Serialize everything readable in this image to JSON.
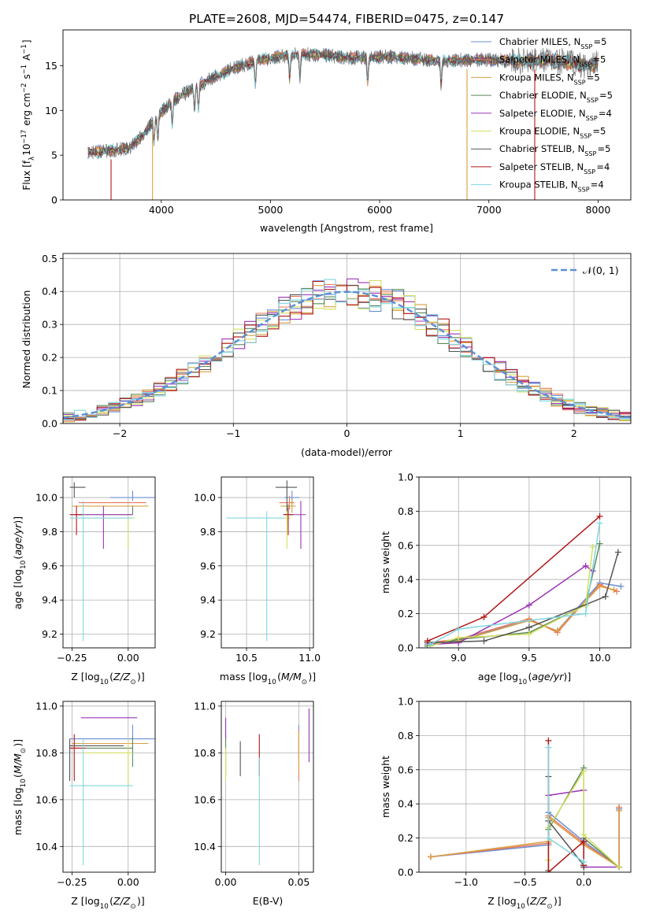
{
  "title": "PLATE=2608, MJD=54474, FIBERID=0475, z=0.147",
  "colors": {
    "Chabrier MILES": "#6b8fd6",
    "Salpeter MILES": "#e8795a",
    "Kroupa MILES": "#d99f45",
    "Chabrier ELODIE": "#5c8a5c",
    "Salpeter ELODIE": "#9b35b5",
    "Kroupa ELODIE": "#d4e060",
    "Chabrier STELIB": "#555555",
    "Salpeter STELIB": "#b01818",
    "Kroupa STELIB": "#7fd6e0"
  },
  "chart_data": [
    {
      "id": "spectrum",
      "type": "line",
      "xlabel": "wavelength [Angstrom, rest frame]",
      "ylabel": "Flux [f_λ10^-17 erg cm^-2 s^-1 A^-1]",
      "xlim": [
        3100,
        8300
      ],
      "ylim": [
        0,
        19
      ],
      "xticks": [
        4000,
        5000,
        6000,
        7000,
        8000
      ],
      "yticks": [
        0,
        5,
        10,
        15
      ],
      "grid": false,
      "legend_position": "right",
      "legend": [
        {
          "label": "Chabrier MILES, N",
          "sub": "SSP",
          "suffix": "=5",
          "series": "Chabrier MILES"
        },
        {
          "label": "Salpeter MILES, N",
          "sub": "SSP",
          "suffix": "=5",
          "series": "Salpeter MILES"
        },
        {
          "label": "Kroupa MILES, N",
          "sub": "SSP",
          "suffix": "=5",
          "series": "Kroupa MILES"
        },
        {
          "label": "Chabrier ELODIE, N",
          "sub": "SSP",
          "suffix": "=5",
          "series": "Chabrier ELODIE"
        },
        {
          "label": "Salpeter ELODIE, N",
          "sub": "SSP",
          "suffix": "=4",
          "series": "Salpeter ELODIE"
        },
        {
          "label": "Kroupa ELODIE, N",
          "sub": "SSP",
          "suffix": "=5",
          "series": "Kroupa ELODIE"
        },
        {
          "label": "Chabrier STELIB, N",
          "sub": "SSP",
          "suffix": "=5",
          "series": "Chabrier STELIB"
        },
        {
          "label": "Salpeter STELIB, N",
          "sub": "SSP",
          "suffix": "=4",
          "series": "Salpeter STELIB"
        },
        {
          "label": "Kroupa STELIB, N",
          "sub": "SSP",
          "suffix": "=4",
          "series": "Kroupa STELIB"
        }
      ],
      "continuum": {
        "x": [
          3330,
          3500,
          3700,
          3850,
          3950,
          4100,
          4300,
          4500,
          4700,
          4900,
          5100,
          5300,
          5500,
          5700,
          5900,
          6100,
          6300,
          6500,
          6700,
          6900,
          7100,
          7300,
          7500,
          7700,
          7900,
          8000
        ],
        "y": [
          5.3,
          5.5,
          5.7,
          7.5,
          9.2,
          11.0,
          12.6,
          13.8,
          14.9,
          15.6,
          16.1,
          16.3,
          16.2,
          15.9,
          15.9,
          16.0,
          15.8,
          15.6,
          15.6,
          15.7,
          15.6,
          15.5,
          15.6,
          15.4,
          15.0,
          15.2
        ]
      },
      "absorption_lines": [
        3934,
        3969,
        4101,
        4304,
        4340,
        4861,
        5175,
        5270,
        5890,
        6563
      ],
      "model_edges": [
        {
          "series": "Salpeter STELIB",
          "x": [
            3540,
            7420
          ]
        },
        {
          "series": "Kroupa MILES",
          "x": [
            3920,
            6800
          ]
        }
      ]
    },
    {
      "id": "residuals",
      "type": "line",
      "xlabel": "(data-model)/error",
      "ylabel": "Normed distribution",
      "xlim": [
        -2.5,
        2.5
      ],
      "ylim": [
        0,
        0.515
      ],
      "xticks": [
        -2,
        -1,
        0,
        1,
        2
      ],
      "yticks": [
        0.0,
        0.1,
        0.2,
        0.3,
        0.4,
        0.5
      ],
      "grid": true,
      "legend": "𝒩(0, 1)",
      "legend_position": "top-right",
      "bin_width": 0.1
    },
    {
      "id": "age-vs-z",
      "type": "scatter",
      "xlabel": "Z [log10(Z/Z⊙)]",
      "ylabel": "age [log10(age/yr)]",
      "xlim": [
        -0.29,
        0.12
      ],
      "ylim": [
        9.12,
        10.12
      ],
      "xticks": [
        -0.25,
        0.0
      ],
      "yticks": [
        9.2,
        9.4,
        9.6,
        9.8,
        10.0
      ],
      "grid": true,
      "points": [
        {
          "series": "Chabrier MILES",
          "x": 0.02,
          "y": 10.0,
          "xerr": [
            0.1,
            0.14
          ],
          "yerr": [
            0.02,
            0.04
          ]
        },
        {
          "series": "Salpeter MILES",
          "x": -0.1,
          "y": 9.97,
          "xerr": [
            0.12,
            0.18
          ],
          "yerr": [
            0.0,
            0.0
          ]
        },
        {
          "series": "Kroupa MILES",
          "x": -0.05,
          "y": 9.95,
          "xerr": [
            0.2,
            0.14
          ],
          "yerr": [
            0.0,
            0.0
          ]
        },
        {
          "series": "Chabrier ELODIE",
          "x": 0.02,
          "y": 9.9,
          "xerr": [
            0.26,
            0.0
          ],
          "yerr": [
            0.0,
            0.05
          ]
        },
        {
          "series": "Salpeter ELODIE",
          "x": -0.11,
          "y": 9.9,
          "xerr": [
            0.15,
            0.13
          ],
          "yerr": [
            0.2,
            0.05
          ]
        },
        {
          "series": "Kroupa ELODIE",
          "x": 0.0,
          "y": 9.88,
          "xerr": [
            0.2,
            0.03
          ],
          "yerr": [
            0.18,
            0.0
          ]
        },
        {
          "series": "Chabrier STELIB",
          "x": -0.24,
          "y": 10.06,
          "xerr": [
            0.02,
            0.05
          ],
          "yerr": [
            0.06,
            0.03
          ]
        },
        {
          "series": "Salpeter STELIB",
          "x": -0.23,
          "y": 9.9,
          "xerr": [
            0.03,
            0.03
          ],
          "yerr": [
            0.12,
            0.05
          ]
        },
        {
          "series": "Kroupa STELIB",
          "x": -0.2,
          "y": 9.88,
          "xerr": [
            0.06,
            0.22
          ],
          "yerr": [
            0.72,
            0.1
          ]
        }
      ]
    },
    {
      "id": "age-vs-mass",
      "type": "scatter",
      "xlabel": "mass [log10(M/M⊙)]",
      "ylim": [
        9.12,
        10.12
      ],
      "xlim": [
        10.3,
        11.03
      ],
      "xticks": [
        10.5,
        11.0
      ],
      "yticks": [
        9.2,
        9.4,
        9.6,
        9.8,
        10.0
      ],
      "grid": true,
      "points": [
        {
          "series": "Chabrier MILES",
          "x": 10.86,
          "y": 10.0,
          "xerr": [
            0.06,
            0.06
          ],
          "yerr": [
            0.04,
            0.04
          ]
        },
        {
          "series": "Salpeter MILES",
          "x": 10.84,
          "y": 9.97,
          "xerr": [
            0.08,
            0.04
          ],
          "yerr": [
            0.04,
            0.04
          ]
        },
        {
          "series": "Kroupa MILES",
          "x": 10.86,
          "y": 9.95,
          "xerr": [
            0.09,
            0.03
          ],
          "yerr": [
            0.04,
            0.04
          ]
        },
        {
          "series": "Chabrier ELODIE",
          "x": 10.83,
          "y": 9.9,
          "xerr": [
            0.03,
            0.03
          ],
          "yerr": [
            0.06,
            0.06
          ]
        },
        {
          "series": "Salpeter ELODIE",
          "x": 10.93,
          "y": 9.9,
          "xerr": [
            0.07,
            0.04
          ],
          "yerr": [
            0.2,
            0.08
          ]
        },
        {
          "series": "Kroupa ELODIE",
          "x": 10.82,
          "y": 9.88,
          "xerr": [
            0.03,
            0.03
          ],
          "yerr": [
            0.18,
            0.06
          ]
        },
        {
          "series": "Chabrier STELIB",
          "x": 10.82,
          "y": 10.06,
          "xerr": [
            0.09,
            0.08
          ],
          "yerr": [
            0.14,
            0.04
          ]
        },
        {
          "series": "Salpeter STELIB",
          "x": 10.83,
          "y": 9.9,
          "xerr": [
            0.04,
            0.04
          ],
          "yerr": [
            0.12,
            0.04
          ]
        },
        {
          "series": "Kroupa STELIB",
          "x": 10.66,
          "y": 9.88,
          "xerr": [
            0.32,
            0.14
          ],
          "yerr": [
            0.72,
            0.04
          ]
        }
      ]
    },
    {
      "id": "weight-vs-age",
      "type": "line",
      "xlabel": "age [log10(age/yr)]",
      "ylabel": "mass weight",
      "xlim": [
        8.72,
        10.22
      ],
      "ylim": [
        0,
        1.0
      ],
      "xticks": [
        9.0,
        9.5,
        10.0
      ],
      "yticks": [
        0.0,
        0.2,
        0.4,
        0.6,
        0.8,
        1.0
      ],
      "grid": true,
      "series": [
        {
          "name": "Chabrier MILES",
          "x": [
            8.78,
            9.0,
            9.5,
            9.7,
            10.0,
            10.15
          ],
          "y": [
            0.02,
            0.05,
            0.16,
            0.1,
            0.38,
            0.36
          ]
        },
        {
          "name": "Salpeter MILES",
          "x": [
            8.78,
            9.0,
            9.5,
            9.7,
            10.0,
            10.12
          ],
          "y": [
            0.03,
            0.05,
            0.17,
            0.09,
            0.37,
            0.33
          ]
        },
        {
          "name": "Kroupa MILES",
          "x": [
            8.8,
            9.0,
            9.5,
            9.7,
            10.0,
            10.1
          ],
          "y": [
            0.02,
            0.04,
            0.16,
            0.1,
            0.36,
            0.34
          ]
        },
        {
          "name": "Chabrier ELODIE",
          "x": [
            8.78,
            9.0,
            9.5,
            9.9,
            10.0
          ],
          "y": [
            0.01,
            0.05,
            0.09,
            0.25,
            0.61
          ]
        },
        {
          "name": "Salpeter ELODIE",
          "x": [
            8.8,
            9.0,
            9.5,
            9.9,
            9.95
          ],
          "y": [
            0.02,
            0.03,
            0.25,
            0.48,
            0.45
          ]
        },
        {
          "name": "Kroupa ELODIE",
          "x": [
            8.8,
            9.0,
            9.5,
            9.9,
            9.95
          ],
          "y": [
            0.01,
            0.06,
            0.08,
            0.25,
            0.59
          ]
        },
        {
          "name": "Chabrier STELIB",
          "x": [
            8.78,
            9.18,
            9.5,
            10.04,
            10.13
          ],
          "y": [
            0.03,
            0.04,
            0.12,
            0.3,
            0.56
          ]
        },
        {
          "name": "Salpeter STELIB",
          "x": [
            8.78,
            9.18,
            10.0
          ],
          "y": [
            0.04,
            0.18,
            0.77
          ]
        },
        {
          "name": "Kroupa STELIB",
          "x": [
            8.8,
            9.0,
            9.9,
            10.0
          ],
          "y": [
            0.02,
            0.11,
            0.2,
            0.73
          ]
        }
      ]
    },
    {
      "id": "mass-vs-z",
      "type": "scatter",
      "xlabel": "Z [log10(Z/Z⊙)]",
      "ylabel": "mass [log10(M/M⊙)]",
      "xlim": [
        -0.29,
        0.12
      ],
      "ylim": [
        10.29,
        11.02
      ],
      "xticks": [
        -0.25,
        0.0
      ],
      "yticks": [
        10.4,
        10.6,
        10.8,
        11.0
      ],
      "grid": true,
      "points": [
        {
          "series": "Chabrier MILES",
          "x": 0.02,
          "y": 10.86,
          "xerr": [
            0.28,
            0.1
          ],
          "yerr": [
            0.06,
            0.06
          ]
        },
        {
          "series": "Salpeter MILES",
          "x": -0.1,
          "y": 10.84,
          "xerr": [
            0.14,
            0.19
          ],
          "yerr": [
            0.0,
            0.0
          ]
        },
        {
          "series": "Kroupa MILES",
          "x": -0.05,
          "y": 10.84,
          "xerr": [
            0.2,
            0.14
          ],
          "yerr": [
            0.0,
            0.0
          ]
        },
        {
          "series": "Chabrier ELODIE",
          "x": 0.02,
          "y": 10.82,
          "xerr": [
            0.28,
            0.0
          ],
          "yerr": [
            0.08,
            0.05
          ]
        },
        {
          "series": "Salpeter ELODIE",
          "x": -0.08,
          "y": 10.95,
          "xerr": [
            0.13,
            0.12
          ],
          "yerr": [
            0.0,
            0.0
          ]
        },
        {
          "series": "Kroupa ELODIE",
          "x": 0.0,
          "y": 10.8,
          "xerr": [
            0.2,
            0.02
          ],
          "yerr": [
            0.14,
            0.06
          ]
        },
        {
          "series": "Chabrier STELIB",
          "x": -0.26,
          "y": 10.83,
          "xerr": [
            0.0,
            0.24
          ],
          "yerr": [
            0.15,
            0.03
          ]
        },
        {
          "series": "Salpeter STELIB",
          "x": -0.24,
          "y": 10.82,
          "xerr": [
            0.02,
            0.05
          ],
          "yerr": [
            0.14,
            0.06
          ]
        },
        {
          "series": "Kroupa STELIB",
          "x": -0.2,
          "y": 10.66,
          "xerr": [
            0.06,
            0.22
          ],
          "yerr": [
            0.34,
            0.2
          ]
        }
      ]
    },
    {
      "id": "mass-vs-ebv",
      "type": "scatter",
      "xlabel": "E(B-V)",
      "xlim": [
        -0.003,
        0.06
      ],
      "ylim": [
        10.29,
        11.02
      ],
      "xticks": [
        0.0,
        0.05
      ],
      "yticks": [
        10.4,
        10.6,
        10.8,
        11.0
      ],
      "grid": true,
      "points": [
        {
          "series": "Chabrier MILES",
          "x": 0.05,
          "y": 10.86,
          "yerr": [
            0.08,
            0.06
          ]
        },
        {
          "series": "Salpeter MILES",
          "x": 0.05,
          "y": 10.84,
          "yerr": [
            0.16,
            0.06
          ]
        },
        {
          "series": "Kroupa MILES",
          "x": 0.05,
          "y": 10.84,
          "yerr": [
            0.12,
            0.05
          ]
        },
        {
          "series": "Chabrier ELODIE",
          "x": 0.0,
          "y": 10.82,
          "yerr": [
            0.12,
            0.06
          ]
        },
        {
          "series": "Salpeter ELODIE",
          "x": 0.0,
          "y": 10.9,
          "yerr": [
            0.04,
            0.05
          ]
        },
        {
          "series": "Kroupa ELODIE",
          "x": 0.0,
          "y": 10.78,
          "yerr": [
            0.1,
            0.04
          ]
        },
        {
          "series": "Chabrier STELIB",
          "x": 0.01,
          "y": 10.8,
          "yerr": [
            0.1,
            0.05
          ]
        },
        {
          "series": "Salpeter STELIB",
          "x": 0.023,
          "y": 10.82,
          "yerr": [
            0.12,
            0.06
          ]
        },
        {
          "series": "Kroupa STELIB",
          "x": 0.023,
          "y": 10.66,
          "yerr": [
            0.34,
            0.12
          ]
        },
        {
          "series": "Salpeter ELODIE",
          "x": 0.057,
          "y": 10.9,
          "yerr": [
            0.14,
            0.09
          ]
        }
      ]
    },
    {
      "id": "weight-vs-z",
      "type": "line",
      "xlabel": "Z [log10(Z/Z⊙)]",
      "ylabel": "mass weight",
      "xlim": [
        -1.4,
        0.4
      ],
      "ylim": [
        0,
        1.0
      ],
      "xticks": [
        -1.0,
        -0.5,
        0.0
      ],
      "yticks": [
        0.0,
        0.2,
        0.4,
        0.6,
        0.8,
        1.0
      ],
      "grid": true,
      "series": [
        {
          "name": "Chabrier MILES",
          "x": [
            -1.3,
            -0.3,
            -0.3,
            0.0,
            0.3,
            0.3
          ],
          "y": [
            0.09,
            0.16,
            0.35,
            0.18,
            0.03,
            0.37
          ]
        },
        {
          "name": "Salpeter MILES",
          "x": [
            -1.3,
            -0.3,
            -0.3,
            0.0,
            0.3,
            0.3
          ],
          "y": [
            0.09,
            0.17,
            0.33,
            0.17,
            0.03,
            0.38
          ]
        },
        {
          "name": "Kroupa MILES",
          "x": [
            -1.3,
            -0.3,
            -0.3,
            0.0,
            0.3,
            0.3
          ],
          "y": [
            0.09,
            0.18,
            0.32,
            0.16,
            0.03,
            0.36
          ]
        },
        {
          "name": "Chabrier ELODIE",
          "x": [
            -0.3,
            -0.3,
            0.0,
            0.0,
            0.3
          ],
          "y": [
            0.01,
            0.25,
            0.61,
            0.2,
            0.03
          ]
        },
        {
          "name": "Salpeter ELODIE",
          "x": [
            -0.3,
            0.0,
            0.0,
            0.3
          ],
          "y": [
            0.45,
            0.48,
            0.03,
            0.03
          ]
        },
        {
          "name": "Kroupa ELODIE",
          "x": [
            -0.3,
            -0.3,
            0.0,
            0.0,
            0.3
          ],
          "y": [
            0.07,
            0.26,
            0.59,
            0.22,
            0.03
          ]
        },
        {
          "name": "Chabrier STELIB",
          "x": [
            -0.3,
            -0.3,
            0.0,
            0.0
          ],
          "y": [
            0.56,
            0.3,
            0.04,
            0.03
          ]
        },
        {
          "name": "Salpeter STELIB",
          "x": [
            -0.3,
            -0.3,
            0.0,
            0.0
          ],
          "y": [
            0.77,
            0.0,
            0.18,
            0.04
          ]
        },
        {
          "name": "Kroupa STELIB",
          "x": [
            -0.3,
            -0.3,
            0.0
          ],
          "y": [
            0.73,
            0.2,
            0.06
          ]
        }
      ]
    }
  ]
}
